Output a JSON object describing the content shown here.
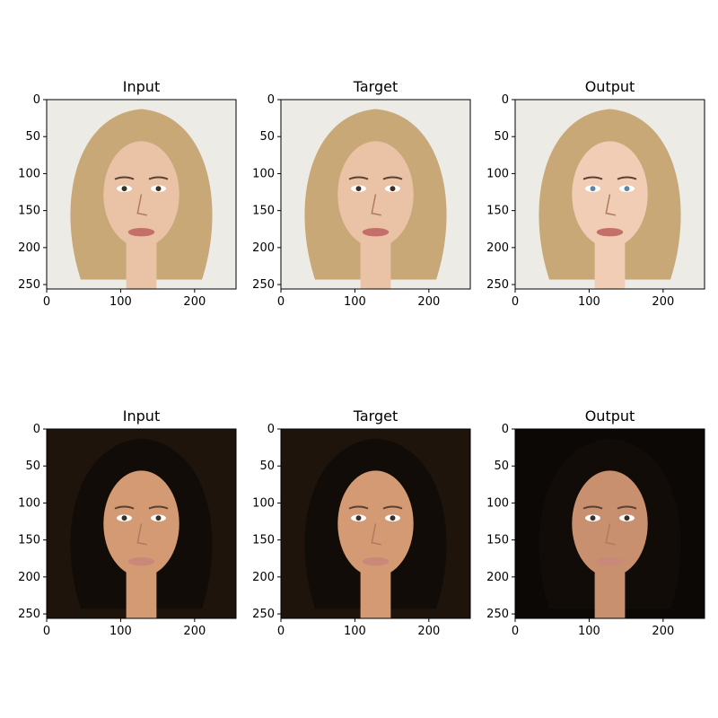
{
  "figure": {
    "rows": [
      {
        "panels": [
          {
            "title": "Input",
            "image": "blonde-woman-portrait-icon",
            "tone": "input"
          },
          {
            "title": "Target",
            "image": "blonde-woman-portrait-icon",
            "tone": "target"
          },
          {
            "title": "Output",
            "image": "blonde-woman-portrait-icon",
            "tone": "output"
          }
        ]
      },
      {
        "panels": [
          {
            "title": "Input",
            "image": "dark-hair-woman-portrait-icon",
            "tone": "input"
          },
          {
            "title": "Target",
            "image": "dark-hair-woman-portrait-icon",
            "tone": "target"
          },
          {
            "title": "Output",
            "image": "dark-hair-woman-portrait-icon",
            "tone": "output"
          }
        ]
      }
    ],
    "axis": {
      "x_ticks": [
        "0",
        "100",
        "200"
      ],
      "y_ticks": [
        "0",
        "50",
        "100",
        "150",
        "200",
        "250"
      ],
      "x_tick_values": [
        0,
        100,
        200
      ],
      "y_tick_values": [
        0,
        50,
        100,
        150,
        200,
        250
      ],
      "extent": [
        0,
        256
      ]
    },
    "colors": {
      "row1_bg": "#ecebe6",
      "row1_hair": "#c9a878",
      "row1_skin": "#eac3a6",
      "row2_bg": "#1e140b",
      "row2_hair": "#120c08",
      "row2_skin": "#d49a74"
    }
  }
}
